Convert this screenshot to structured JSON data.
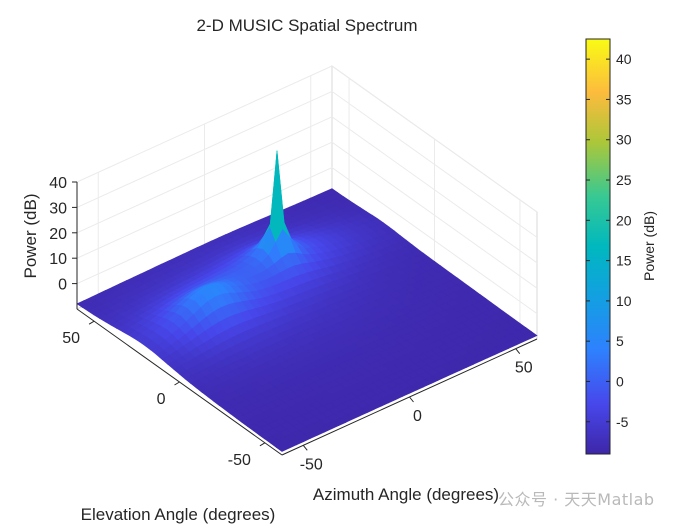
{
  "chart_data": {
    "type": "surface3d",
    "title": "2-D MUSIC Spatial Spectrum",
    "xlabel": "Azimuth Angle (degrees)",
    "ylabel": "Elevation Angle (degrees)",
    "zlabel": "Power (dB)",
    "colorbar_label": "Power (dB)",
    "colormap": "parula",
    "xlim": [
      -60,
      60
    ],
    "ylim": [
      -60,
      60
    ],
    "zlim": [
      -10,
      40
    ],
    "clim": [
      -9,
      42.5
    ],
    "xticks": [
      "-50",
      "0",
      "50"
    ],
    "yticks": [
      "-50",
      "0",
      "50"
    ],
    "zticks": [
      "0",
      "10",
      "20",
      "30",
      "40"
    ],
    "cbar_ticks": [
      "-5",
      "0",
      "5",
      "10",
      "15",
      "20",
      "25",
      "30",
      "35",
      "40"
    ],
    "peaks": [
      {
        "azimuth": 10,
        "elevation": 30,
        "power_db": 42.5
      },
      {
        "azimuth": -30,
        "elevation": 20,
        "power_db": 4
      }
    ],
    "floor_db": -9,
    "grid": true,
    "colorbar_position": "right"
  },
  "watermark": "公众号 · 天天Matlab"
}
